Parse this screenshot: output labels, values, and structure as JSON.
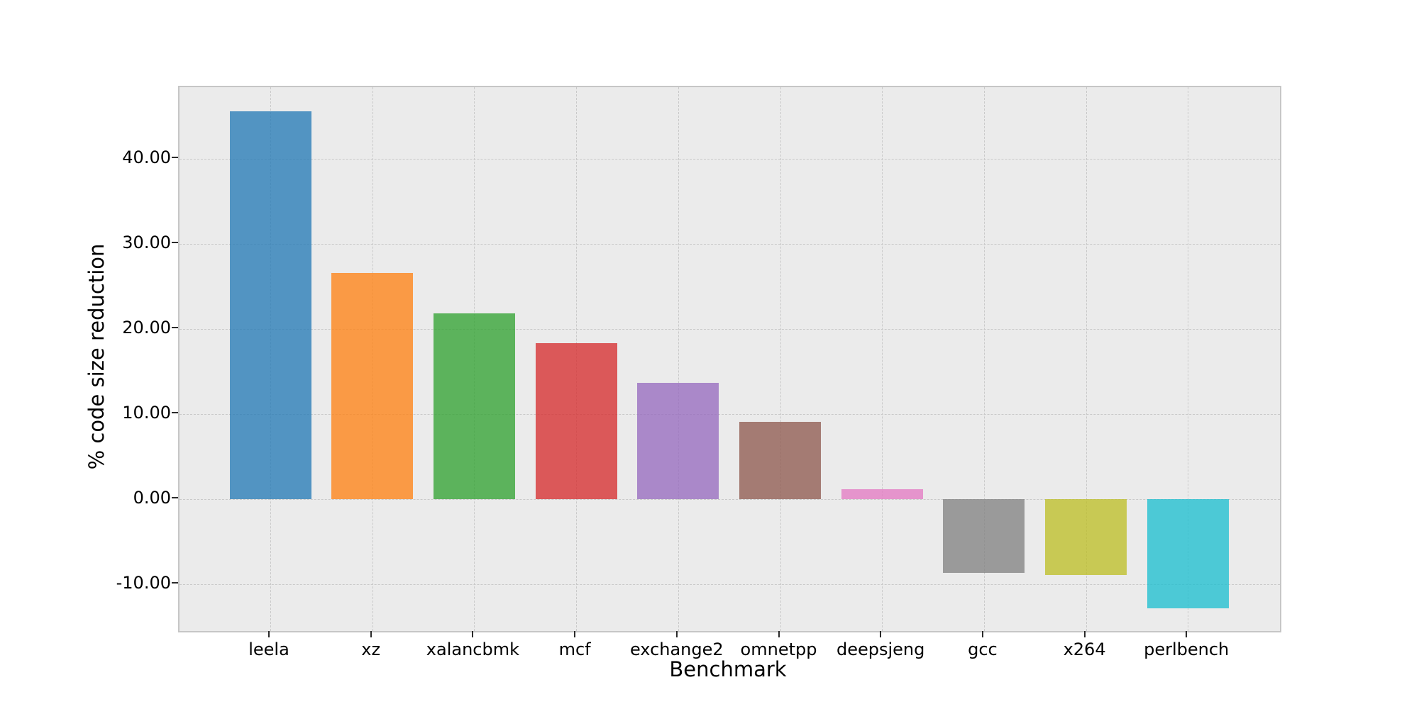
{
  "chart_data": {
    "type": "bar",
    "title": "",
    "xlabel": "Benchmark",
    "ylabel": "% code size reduction",
    "categories": [
      "leela",
      "xz",
      "xalancbmk",
      "mcf",
      "exchange2",
      "omnetpp",
      "deepsjeng",
      "gcc",
      "x264",
      "perlbench"
    ],
    "values": [
      45.6,
      26.6,
      21.8,
      18.3,
      13.7,
      9.1,
      1.2,
      -8.7,
      -8.9,
      -12.8
    ],
    "bar_colors": [
      "rgba(31,119,180,0.75)",
      "rgba(255,127,14,0.75)",
      "rgba(44,160,44,0.75)",
      "rgba(214,39,40,0.75)",
      "rgba(148,103,189,0.75)",
      "rgba(140,86,75,0.75)",
      "rgba(227,119,194,0.75)",
      "rgba(127,127,127,0.75)",
      "rgba(188,189,34,0.75)",
      "rgba(23,190,207,0.75)"
    ],
    "ytick_values": [
      -10,
      0,
      10,
      20,
      30,
      40
    ],
    "ytick_labels": [
      "-10.00",
      "0.00",
      "10.00",
      "20.00",
      "30.00",
      "40.00"
    ],
    "ylim": [
      -15.5,
      48.42
    ],
    "xlim": [
      -0.891,
      9.903
    ],
    "bar_width": 0.8,
    "grid": "dashed gridlines on both axes, behind translucent bars",
    "legend": "none",
    "colors": {
      "plot_background": "#ebebeb",
      "figure_background": "#ffffff",
      "gridline": "#c9c9c9",
      "spine": "#c6c6c6",
      "text": "#000000"
    }
  }
}
